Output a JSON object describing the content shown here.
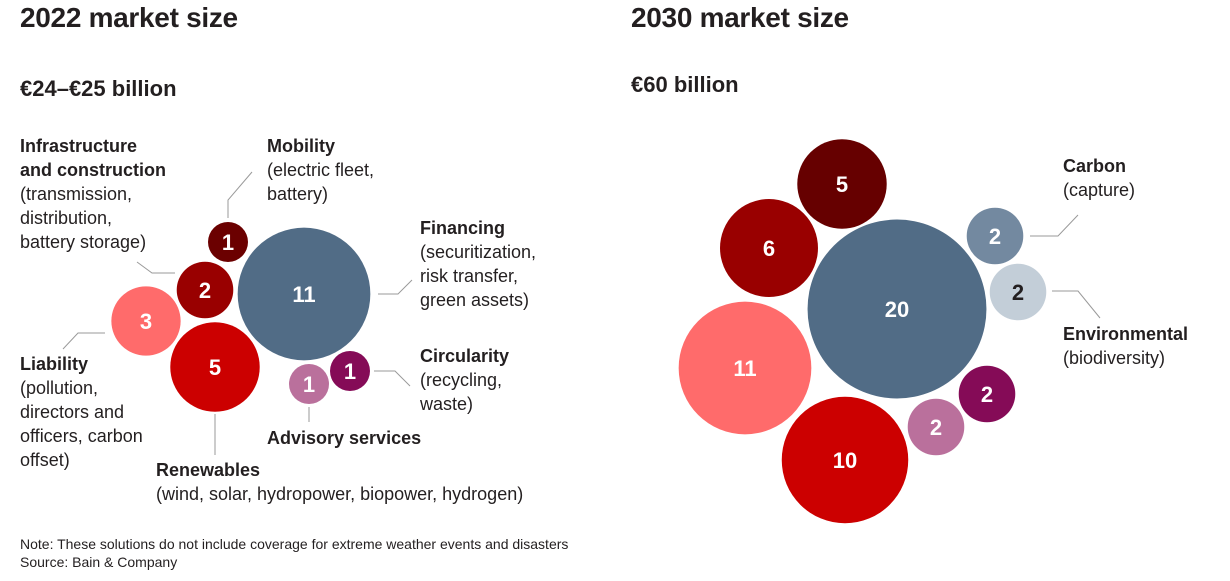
{
  "chart_data": [
    {
      "type": "bubble",
      "title": "2022 market size",
      "subtitle": "€24–€25 billion",
      "unit": "€ billion",
      "bubbles": [
        {
          "id": "mobility",
          "label": "Mobility",
          "description": "(electric fleet,\nbattery)",
          "value": 1,
          "color": "#6b0000",
          "text_color": "#ffffff"
        },
        {
          "id": "infrastructure",
          "label": "Infrastructure\nand construction",
          "description": "(transmission,\ndistribution,\nbattery storage)",
          "value": 2,
          "color": "#990000",
          "text_color": "#ffffff"
        },
        {
          "id": "financing",
          "label": "Financing",
          "description": "(securitization,\nrisk transfer,\ngreen assets)",
          "value": 11,
          "color": "#516c86",
          "text_color": "#ffffff"
        },
        {
          "id": "liability",
          "label": "Liability",
          "description": "(pollution,\ndirectors and\nofficers, carbon\noffset)",
          "value": 3,
          "color": "#ff6b6b",
          "text_color": "#ffffff"
        },
        {
          "id": "renewables",
          "label": "Renewables",
          "description": "(wind, solar, hydropower, biopower, hydrogen)",
          "value": 5,
          "color": "#cc0000",
          "text_color": "#ffffff"
        },
        {
          "id": "advisory",
          "label": "Advisory services",
          "description": "",
          "value": 1,
          "color": "#ba709c",
          "text_color": "#ffffff"
        },
        {
          "id": "circularity",
          "label": "Circularity",
          "description": "(recycling,\nwaste)",
          "value": 1,
          "color": "#850b57",
          "text_color": "#ffffff"
        }
      ]
    },
    {
      "type": "bubble",
      "title": "2030 market size",
      "subtitle": "€60 billion",
      "unit": "€ billion",
      "bubbles": [
        {
          "id": "mobility",
          "value": 5,
          "color": "#660000",
          "text_color": "#ffffff"
        },
        {
          "id": "infrastructure",
          "value": 6,
          "color": "#990000",
          "text_color": "#ffffff"
        },
        {
          "id": "financing",
          "value": 20,
          "color": "#516c86",
          "text_color": "#ffffff"
        },
        {
          "id": "carbon",
          "label": "Carbon",
          "description": "(capture)",
          "value": 2,
          "color": "#7389a0",
          "text_color": "#ffffff"
        },
        {
          "id": "environmental",
          "label": "Environmental",
          "description": "(biodiversity)",
          "value": 2,
          "color": "#c3ced8",
          "text_color": "#231f20"
        },
        {
          "id": "liability",
          "value": 11,
          "color": "#ff6b6b",
          "text_color": "#ffffff"
        },
        {
          "id": "circularity",
          "value": 2,
          "color": "#850b57",
          "text_color": "#ffffff"
        },
        {
          "id": "advisory",
          "value": 2,
          "color": "#ba709c",
          "text_color": "#ffffff"
        },
        {
          "id": "renewables",
          "value": 10,
          "color": "#cc0000",
          "text_color": "#ffffff"
        }
      ]
    }
  ],
  "footer": {
    "note": "Note: These solutions do not include coverage for extreme weather events and disasters",
    "source": "Source: Bain & Company"
  },
  "colors": {
    "leader_line": "#9a9a9a",
    "text": "#231f20"
  }
}
